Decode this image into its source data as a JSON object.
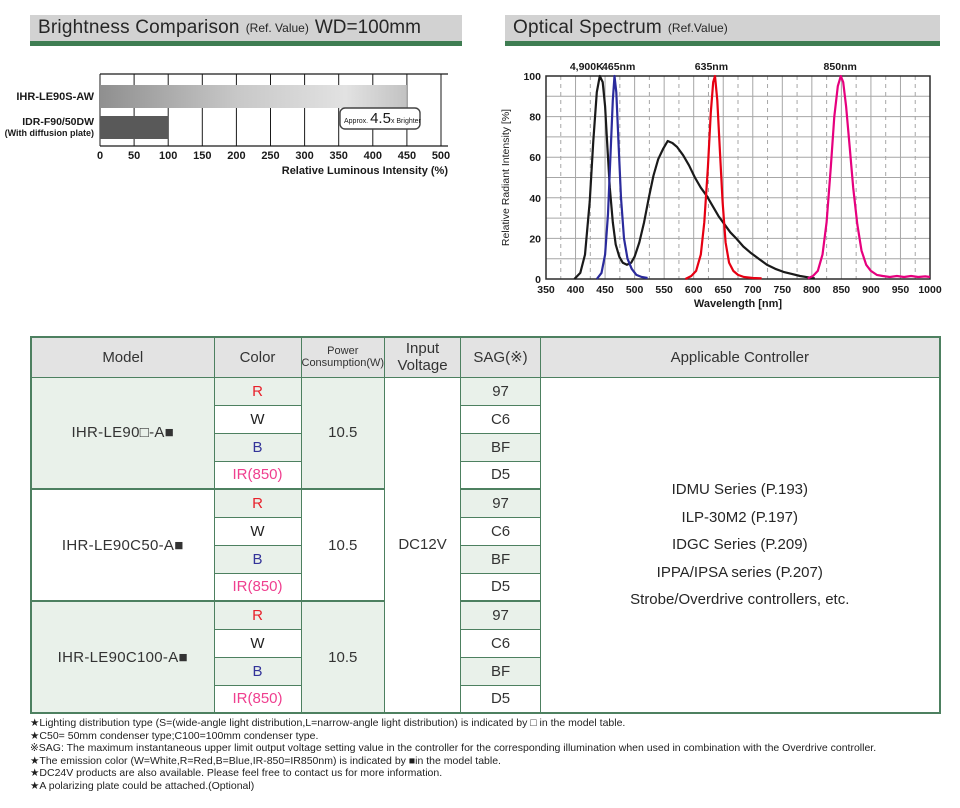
{
  "brightness_header": {
    "title": "Brightness Comparison",
    "ref": "(Ref. Value)",
    "wd": "WD=100mm"
  },
  "spectrum_header": {
    "title": "Optical Spectrum",
    "ref": "(Ref.Value)"
  },
  "chart_data": [
    {
      "type": "bar",
      "orientation": "horizontal",
      "title": "Brightness Comparison (Ref. Value) WD=100mm",
      "categories": [
        "IHR-LE90S-AW",
        "IDR-F90/50DW (With diffusion plate)"
      ],
      "category_labels": [
        [
          "IHR-LE90S-AW"
        ],
        [
          "IDR-F90/50DW",
          "(With diffusion plate)"
        ]
      ],
      "values": [
        450,
        100
      ],
      "bar_colors": [
        "silver-gradient",
        "#595959"
      ],
      "xlabel": "Relative Luminous Intensity (%)",
      "xlim": [
        0,
        500
      ],
      "xticks": [
        0,
        50,
        100,
        150,
        200,
        250,
        300,
        350,
        400,
        450,
        500
      ],
      "grid": "vertical lines at each tick",
      "annotation": {
        "prefix": "Approx.",
        "value": "4.5",
        "suffix": "x Brighter"
      }
    },
    {
      "type": "line",
      "title": "Optical Spectrum (Ref.Value)",
      "xlabel": "Wavelength [nm]",
      "ylabel": "Relative Radiant Intensity [%]",
      "xlim": [
        350,
        1000
      ],
      "ylim": [
        0,
        100
      ],
      "xticks": [
        350,
        400,
        450,
        500,
        550,
        600,
        650,
        700,
        750,
        800,
        850,
        900,
        950,
        1000
      ],
      "yticks": [
        0,
        20,
        40,
        60,
        80,
        100
      ],
      "grid": "solid gray verticals every 50nm, dashed verticals every 25nm, solid horizontals every 10%",
      "peak_labels": [
        {
          "text": "4,900K",
          "nm": 419
        },
        {
          "text": "465nm",
          "nm": 473
        },
        {
          "text": "635nm",
          "nm": 630
        },
        {
          "text": "850nm",
          "nm": 848
        }
      ],
      "series": [
        {
          "name": "White 4,900K",
          "color": "#1a1a1a",
          "points": [
            [
              398,
              0
            ],
            [
              408,
              3
            ],
            [
              416,
              12
            ],
            [
              424,
              38
            ],
            [
              430,
              68
            ],
            [
              436,
              92
            ],
            [
              441,
              100
            ],
            [
              446,
              97
            ],
            [
              450,
              85
            ],
            [
              454,
              65
            ],
            [
              458,
              45
            ],
            [
              463,
              28
            ],
            [
              468,
              17
            ],
            [
              474,
              11
            ],
            [
              480,
              8
            ],
            [
              487,
              7
            ],
            [
              494,
              8
            ],
            [
              500,
              11
            ],
            [
              508,
              18
            ],
            [
              516,
              28
            ],
            [
              524,
              40
            ],
            [
              532,
              51
            ],
            [
              540,
              59
            ],
            [
              548,
              64
            ],
            [
              556,
              68
            ],
            [
              564,
              67
            ],
            [
              572,
              65
            ],
            [
              582,
              61
            ],
            [
              592,
              56
            ],
            [
              602,
              50
            ],
            [
              612,
              45
            ],
            [
              622,
              41
            ],
            [
              632,
              36
            ],
            [
              642,
              31
            ],
            [
              652,
              27
            ],
            [
              662,
              23
            ],
            [
              672,
              20
            ],
            [
              684,
              16
            ],
            [
              696,
              13
            ],
            [
              710,
              10
            ],
            [
              724,
              7
            ],
            [
              738,
              5
            ],
            [
              752,
              3.5
            ],
            [
              766,
              2.5
            ],
            [
              780,
              1.5
            ],
            [
              795,
              0.8
            ],
            [
              805,
              0.3
            ]
          ]
        },
        {
          "name": "Blue 465nm",
          "color": "#2b2b9c",
          "points": [
            [
              436,
              0
            ],
            [
              444,
              3
            ],
            [
              450,
              12
            ],
            [
              455,
              32
            ],
            [
              459,
              60
            ],
            [
              463,
              88
            ],
            [
              466,
              100
            ],
            [
              469,
              92
            ],
            [
              473,
              65
            ],
            [
              477,
              40
            ],
            [
              482,
              20
            ],
            [
              488,
              10
            ],
            [
              495,
              5
            ],
            [
              503,
              2
            ],
            [
              512,
              1
            ],
            [
              522,
              0.5
            ]
          ]
        },
        {
          "name": "Red 635nm",
          "color": "#e60012",
          "points": [
            [
              586,
              0
            ],
            [
              596,
              1.5
            ],
            [
              604,
              4
            ],
            [
              612,
              12
            ],
            [
              618,
              28
            ],
            [
              624,
              55
            ],
            [
              629,
              82
            ],
            [
              633,
              97
            ],
            [
              636,
              100
            ],
            [
              640,
              88
            ],
            [
              644,
              65
            ],
            [
              649,
              38
            ],
            [
              654,
              18
            ],
            [
              660,
              8
            ],
            [
              667,
              4
            ],
            [
              675,
              2
            ],
            [
              685,
              1
            ],
            [
              700,
              0.5
            ],
            [
              715,
              0.3
            ]
          ]
        },
        {
          "name": "IR 850nm",
          "color": "#e6007e",
          "points": [
            [
              793,
              0.3
            ],
            [
              802,
              1.5
            ],
            [
              810,
              4
            ],
            [
              818,
              12
            ],
            [
              825,
              28
            ],
            [
              832,
              55
            ],
            [
              838,
              80
            ],
            [
              844,
              95
            ],
            [
              849,
              100
            ],
            [
              853,
              97
            ],
            [
              858,
              85
            ],
            [
              864,
              65
            ],
            [
              870,
              45
            ],
            [
              877,
              27
            ],
            [
              884,
              14
            ],
            [
              892,
              7
            ],
            [
              900,
              4
            ],
            [
              910,
              2
            ],
            [
              920,
              1.5
            ],
            [
              932,
              1
            ],
            [
              944,
              1.5
            ],
            [
              956,
              1
            ],
            [
              968,
              1.5
            ],
            [
              980,
              1
            ],
            [
              992,
              1.3
            ],
            [
              1000,
              1
            ]
          ]
        }
      ]
    }
  ],
  "table": {
    "headers": {
      "model": "Model",
      "color": "Color",
      "power_line1": "Power",
      "power_line2": "Consumption(W)",
      "voltage": "Input Voltage",
      "sag": "SAG(※)",
      "controller": "Applicable Controller"
    },
    "input_voltage": "DC12V",
    "controllers": [
      "IDMU Series  (P.193)",
      "ILP-30M2  (P.197)",
      "IDGC Series  (P.209)",
      "IPPA/IPSA series  (P.207)",
      "Strobe/Overdrive controllers, etc."
    ],
    "groups": [
      {
        "model": "IHR-LE90□-A■",
        "power": "10.5",
        "shade": true,
        "rows": [
          {
            "color": "R",
            "color_hex": "#e8212b",
            "sag": "97",
            "shade": true
          },
          {
            "color": "W",
            "color_hex": "#222222",
            "sag": "C6",
            "shade": false
          },
          {
            "color": "B",
            "color_hex": "#333399",
            "sag": "BF",
            "shade": true
          },
          {
            "color": "IR(850)",
            "color_hex": "#ef3f8f",
            "sag": "D5",
            "shade": false
          }
        ]
      },
      {
        "model": "IHR-LE90C50-A■",
        "power": "10.5",
        "shade": false,
        "rows": [
          {
            "color": "R",
            "color_hex": "#e8212b",
            "sag": "97",
            "shade": true
          },
          {
            "color": "W",
            "color_hex": "#222222",
            "sag": "C6",
            "shade": false
          },
          {
            "color": "B",
            "color_hex": "#333399",
            "sag": "BF",
            "shade": true
          },
          {
            "color": "IR(850)",
            "color_hex": "#ef3f8f",
            "sag": "D5",
            "shade": false
          }
        ]
      },
      {
        "model": "IHR-LE90C100-A■",
        "power": "10.5",
        "shade": true,
        "rows": [
          {
            "color": "R",
            "color_hex": "#e8212b",
            "sag": "97",
            "shade": true
          },
          {
            "color": "W",
            "color_hex": "#222222",
            "sag": "C6",
            "shade": false
          },
          {
            "color": "B",
            "color_hex": "#333399",
            "sag": "BF",
            "shade": true
          },
          {
            "color": "IR(850)",
            "color_hex": "#ef3f8f",
            "sag": "D5",
            "shade": false
          }
        ]
      }
    ]
  },
  "footnotes": [
    "★Lighting distribution type (S=(wide-angle light distribution,L=narrow-angle light distribution) is indicated by □ in the model table.",
    "★C50= 50mm condenser type;C100=100mm condenser type.",
    "※SAG: The maximum instantaneous upper limit output voltage setting value in the controller for the corresponding illumination when used in combination with the Overdrive controller.",
    "★The emission color (W=White,R=Red,B=Blue,IR-850=IR850nm) is indicated by ■in the model table.",
    "★DC24V products are also available. Please feel free to contact us for more information.",
    "★A polarizing plate could be attached.(Optional)"
  ],
  "colors": {
    "header_bg": "#d2d2d2",
    "header_green": "#3f7d52",
    "table_border": "#4d8060",
    "cell_shade": "#e9f1ea",
    "bar_dark": "#595959"
  }
}
